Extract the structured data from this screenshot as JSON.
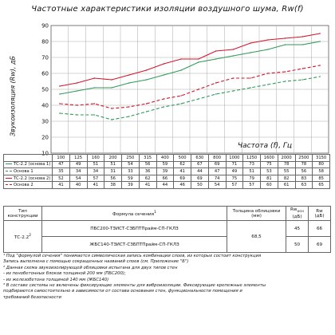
{
  "chart_data": {
    "type": "line",
    "title": "Частотные характеристики изоляции воздушного шума, Rw(f)",
    "ylabel": "Звукоизоляция (Rw), дБ",
    "xlabel": "Частота (f), Гц",
    "ylim": [
      10,
      90
    ],
    "yticks": [
      "10",
      "20",
      "30",
      "40",
      "50",
      "60",
      "70",
      "80",
      "90"
    ],
    "x": [
      "100",
      "125",
      "160",
      "200",
      "250",
      "315",
      "400",
      "500",
      "630",
      "800",
      "1000",
      "1250",
      "1600",
      "2000",
      "2500",
      "3150"
    ],
    "grid": true,
    "series": [
      {
        "name": "ТС-2.2 (основа 1)",
        "color": "#2e9a57",
        "dash": "solid",
        "values": [
          47,
          49,
          51,
          51,
          54,
          56,
          59,
          62,
          67,
          69,
          71,
          73,
          75,
          78,
          78,
          80
        ]
      },
      {
        "name": "Основа 1",
        "color": "#2e9a57",
        "dash": "dashed",
        "values": [
          35,
          34,
          34,
          31,
          33,
          36,
          39,
          41,
          44,
          47,
          49,
          51,
          53,
          55,
          56,
          58
        ]
      },
      {
        "name": "ТС-2.2 (основа 2)",
        "color": "#d4142c",
        "dash": "solid",
        "values": [
          52,
          54,
          57,
          56,
          59,
          62,
          66,
          69,
          69,
          74,
          75,
          79,
          81,
          82,
          83,
          85
        ]
      },
      {
        "name": "Основа 2",
        "color": "#d4142c",
        "dash": "dashed",
        "values": [
          41,
          40,
          41,
          38,
          39,
          41,
          44,
          46,
          50,
          54,
          57,
          57,
          60,
          61,
          63,
          65
        ]
      }
    ]
  },
  "spec_table": {
    "headers": {
      "type": "Тип конструкции",
      "formula": "Формула сечения",
      "formula_sup": "1",
      "thickness": "Толщина облицовки (мм)",
      "rw": "Rw",
      "rw_sub": "осн",
      "rw_unit": "(дБ)",
      "rwt": "Rw",
      "rwt_unit": "(дБ)"
    },
    "type_value": "ТС-2.2",
    "type_sup": "2",
    "thickness_value": "68,5",
    "rows": [
      {
        "formula": "ПБС200-ТЗИСТ-СЗБПТПрайм-СП-ГКЛЗ",
        "rw_osn": "45",
        "rw": "66"
      },
      {
        "formula": "ЖБС140-ТЗИСТ-СЗБПТПрайм-СП-ГКЛЗ",
        "rw_osn": "50",
        "rw": "69"
      }
    ]
  },
  "notes": [
    "¹ Под \"формулой сечения\" понимается символическая запись комбинации слоев, из которых состоит конструкция",
    "Запись выполнена с помощью сокращенных названий слоев (см. Приложение \"Б\")",
    "² Данная схема звукоизолирующей облицовки испытана для двух типов стен",
    "- из пенобетонных блоков толщиной 200 мм (ПБС200);",
    "- из железобетона толщиной 140 мм (ЖБС140)",
    "³ В составе системы не включены фиксирующие элементы для виброизоляции. Фиксирующие крепежные элементы",
    "подбираются самостоятельно в зависимости от состава основания стен, функциональности помещения и",
    "требований безопасности"
  ]
}
